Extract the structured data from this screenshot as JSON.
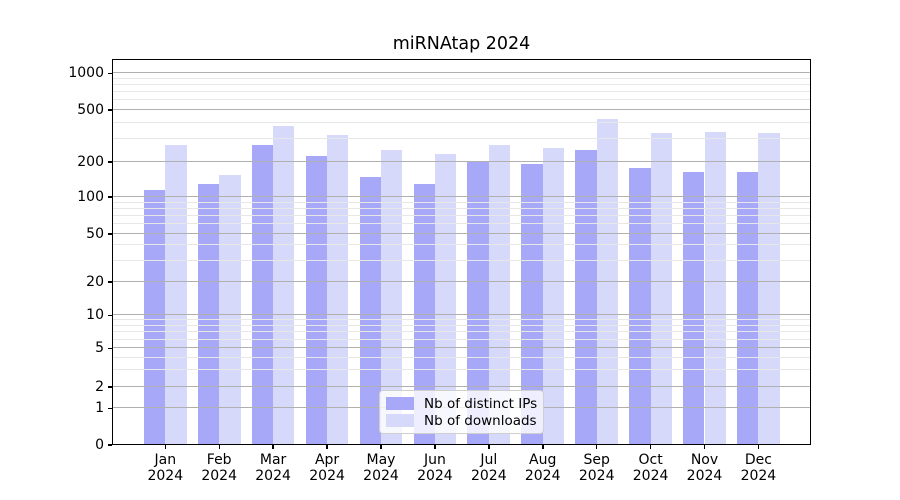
{
  "title": "miRNAtap 2024",
  "legend": {
    "items": [
      {
        "label": "Nb of distinct IPs",
        "color": "#a8a8f8"
      },
      {
        "label": "Nb of downloads",
        "color": "#d7d9fa"
      }
    ]
  },
  "colors": {
    "bar_distinct_ips": "#a8a8f8",
    "bar_downloads": "#d7d9fa",
    "grid_major": "#b0b0b0",
    "grid_minor": "#e7e7e7",
    "axis": "#000000"
  },
  "chart_data": {
    "type": "bar",
    "title": "miRNAtap 2024",
    "categories": [
      "Jan 2024",
      "Feb 2024",
      "Mar 2024",
      "Apr 2024",
      "May 2024",
      "Jun 2024",
      "Jul 2024",
      "Aug 2024",
      "Sep 2024",
      "Oct 2024",
      "Nov 2024",
      "Dec 2024"
    ],
    "series": [
      {
        "name": "Nb of distinct IPs",
        "color": "#a8a8f8",
        "values": [
          115,
          128,
          270,
          220,
          148,
          128,
          198,
          190,
          245,
          178,
          163,
          165
        ]
      },
      {
        "name": "Nb of downloads",
        "color": "#d7d9fa",
        "values": [
          270,
          155,
          380,
          320,
          245,
          230,
          270,
          255,
          425,
          335,
          340,
          335
        ]
      }
    ],
    "xlabel": "",
    "ylabel": "",
    "y_ticks": [
      0,
      1,
      2,
      5,
      10,
      20,
      50,
      100,
      200,
      500,
      1000
    ],
    "y_minor_gridlines": [
      3,
      4,
      6,
      7,
      8,
      9,
      30,
      40,
      60,
      70,
      80,
      90,
      300,
      400,
      600,
      700,
      800,
      900
    ],
    "yscale": "log-like with 0 baseline (labeled ticks 0,1,2,5,10,20,50,100,200,500,1000)",
    "ylim": [
      0,
      1300
    ],
    "grid": true,
    "legend_position": "lower center inside plot"
  }
}
